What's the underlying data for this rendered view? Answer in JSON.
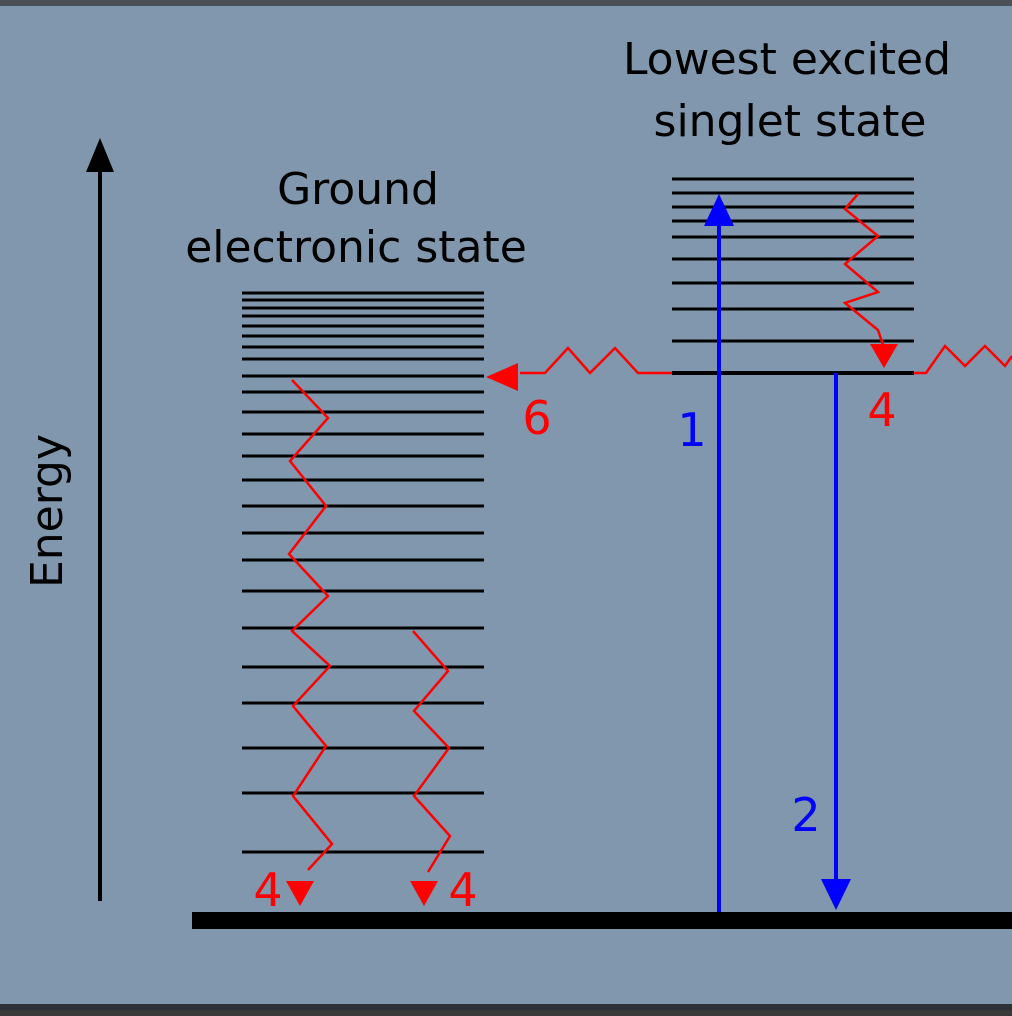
{
  "titles": {
    "excited_line1": "Lowest excited",
    "excited_line2": "singlet state",
    "ground_line1": "Ground",
    "ground_line2": "electronic state"
  },
  "axis_label": "Energy",
  "process_labels": {
    "absorption": "1",
    "fluorescence": "2",
    "relax_excited": "4",
    "relax_ground_left": "4",
    "relax_ground_right": "4",
    "internal_conversion": "6"
  },
  "colors": {
    "background": "#8097ad",
    "levels": "#000000",
    "radiative": "#0000ff",
    "nonradiative": "#ff0000"
  }
}
